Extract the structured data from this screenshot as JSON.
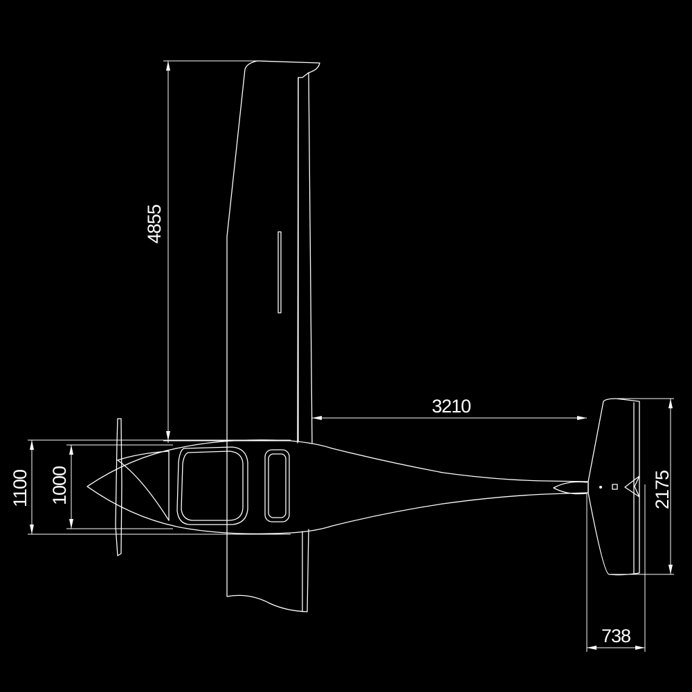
{
  "colors": {
    "background": "#000000",
    "line": "#ffffff"
  },
  "dimensions": {
    "wingspan_half": "4855",
    "tail_arm": "3210",
    "tail_span": "2175",
    "tail_chord": "738",
    "fuselage_width_outer": "1100",
    "fuselage_width_inner": "1000"
  }
}
